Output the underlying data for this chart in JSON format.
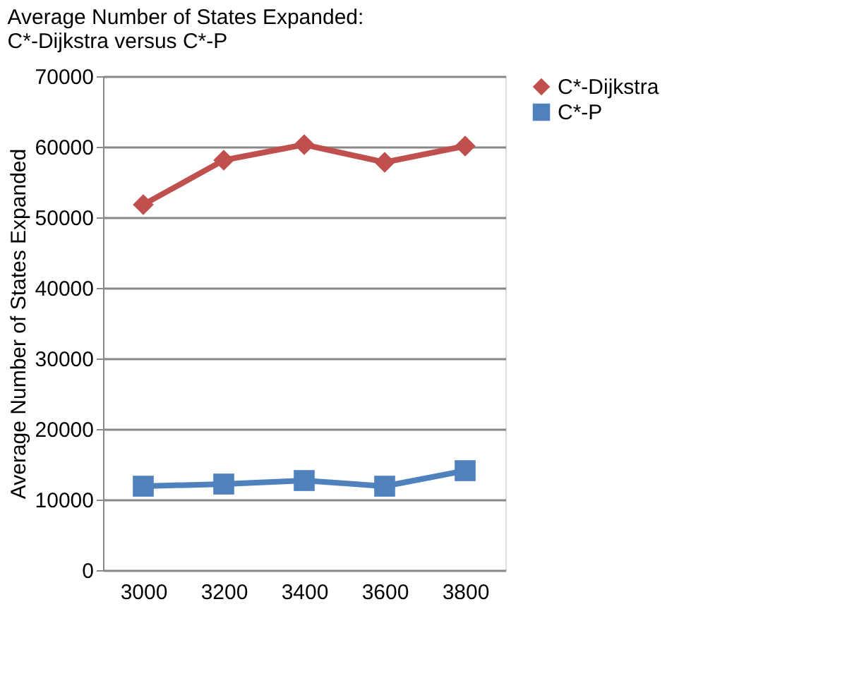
{
  "chart_data": {
    "type": "line",
    "title": [
      "Average Number of States Expanded:",
      "C*-Dijkstra versus C*-P"
    ],
    "ylabel": "Average Number of States Expanded",
    "categories": [
      "3000",
      "3200",
      "3400",
      "3600",
      "3800"
    ],
    "series": [
      {
        "name": "C*-Dijkstra",
        "color": "#c0504d",
        "marker": "diamond",
        "values": [
          51800,
          58100,
          60300,
          57800,
          60100
        ]
      },
      {
        "name": "C*-P",
        "color": "#4f81bd",
        "marker": "square",
        "values": [
          11900,
          12200,
          12700,
          11900,
          14100
        ]
      }
    ],
    "ylim": [
      0,
      70000
    ],
    "yticks": [
      0,
      10000,
      20000,
      30000,
      40000,
      50000,
      60000,
      70000
    ],
    "grid": "y",
    "legend": "right"
  }
}
